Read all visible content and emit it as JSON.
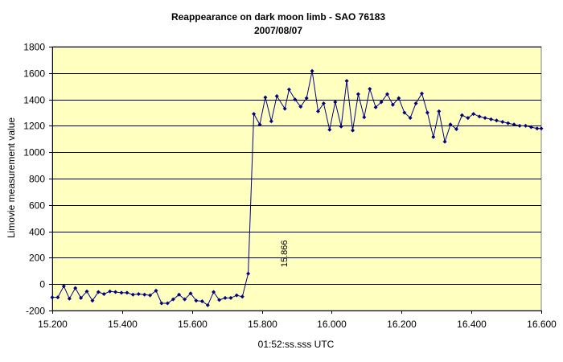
{
  "chart_data": {
    "type": "line",
    "title": "Reappearance on dark moon limb - SAO 76183",
    "subtitle": "2007/08/07",
    "xlabel": "01:52:ss.sss UTC",
    "ylabel": "Limovie measurement value",
    "xlim": [
      15.2,
      16.6
    ],
    "ylim": [
      -200,
      1800
    ],
    "x_ticks": [
      "15.200",
      "15.400",
      "15.600",
      "15.800",
      "16.000",
      "16.200",
      "16.400",
      "16.600"
    ],
    "x_tick_values": [
      15.2,
      15.4,
      15.6,
      15.8,
      16.0,
      16.2,
      16.4,
      16.6
    ],
    "y_ticks": [
      "1800",
      "1600",
      "1400",
      "1200",
      "1000",
      "800",
      "600",
      "400",
      "200",
      "0",
      "-200"
    ],
    "y_tick_values": [
      1800,
      1600,
      1400,
      1200,
      1000,
      800,
      600,
      400,
      200,
      0,
      -200
    ],
    "grid": "horizontal",
    "colors": {
      "plot_background": "#FFFFC0",
      "series": "#000080",
      "gridline": "#000000"
    },
    "annotation": {
      "text": "15.866",
      "x": 15.866,
      "y": 80
    },
    "series": [
      {
        "x": [
          15.2,
          15.216,
          15.233,
          15.249,
          15.266,
          15.282,
          15.299,
          15.315,
          15.332,
          15.348,
          15.365,
          15.381,
          15.398,
          15.414,
          15.431,
          15.447,
          15.464,
          15.48,
          15.497,
          15.513,
          15.53,
          15.546,
          15.563,
          15.579,
          15.596,
          15.612,
          15.629,
          15.645,
          15.662,
          15.678,
          15.695,
          15.711,
          15.728,
          15.744,
          15.761,
          15.777,
          15.794,
          15.81,
          15.827,
          15.843,
          15.866,
          15.878,
          15.895,
          15.911,
          15.928,
          15.944,
          15.961,
          15.977,
          15.994,
          16.01,
          16.027,
          16.043,
          16.06,
          16.076,
          16.093,
          16.109,
          16.126,
          16.142,
          16.159,
          16.175,
          16.192,
          16.208,
          16.225,
          16.241,
          16.258,
          16.274,
          16.291,
          16.307,
          16.324,
          16.34,
          16.357,
          16.373,
          16.39,
          16.406,
          16.423,
          16.439,
          16.456,
          16.472,
          16.489,
          16.505,
          16.522,
          16.538,
          16.555,
          16.571,
          16.588,
          16.6
        ],
        "y": [
          -100,
          -100,
          -15,
          -110,
          -30,
          -105,
          -55,
          -125,
          -60,
          -75,
          -55,
          -60,
          -65,
          -65,
          -80,
          -75,
          -80,
          -85,
          -50,
          -145,
          -145,
          -115,
          -80,
          -115,
          -70,
          -125,
          -130,
          -160,
          -60,
          -120,
          -105,
          -105,
          -85,
          -95,
          80,
          1290,
          1210,
          1415,
          1235,
          1425,
          1330,
          1475,
          1400,
          1345,
          1410,
          1615,
          1310,
          1370,
          1170,
          1380,
          1195,
          1540,
          1165,
          1440,
          1265,
          1480,
          1340,
          1380,
          1440,
          1360,
          1410,
          1300,
          1260,
          1370,
          1445,
          1300,
          1115,
          1310,
          1080,
          1210,
          1175,
          1280,
          1260,
          1290,
          1270,
          1260,
          1250,
          1240,
          1230,
          1220,
          1210,
          1200,
          1200,
          1190,
          1180,
          1180
        ]
      }
    ]
  }
}
